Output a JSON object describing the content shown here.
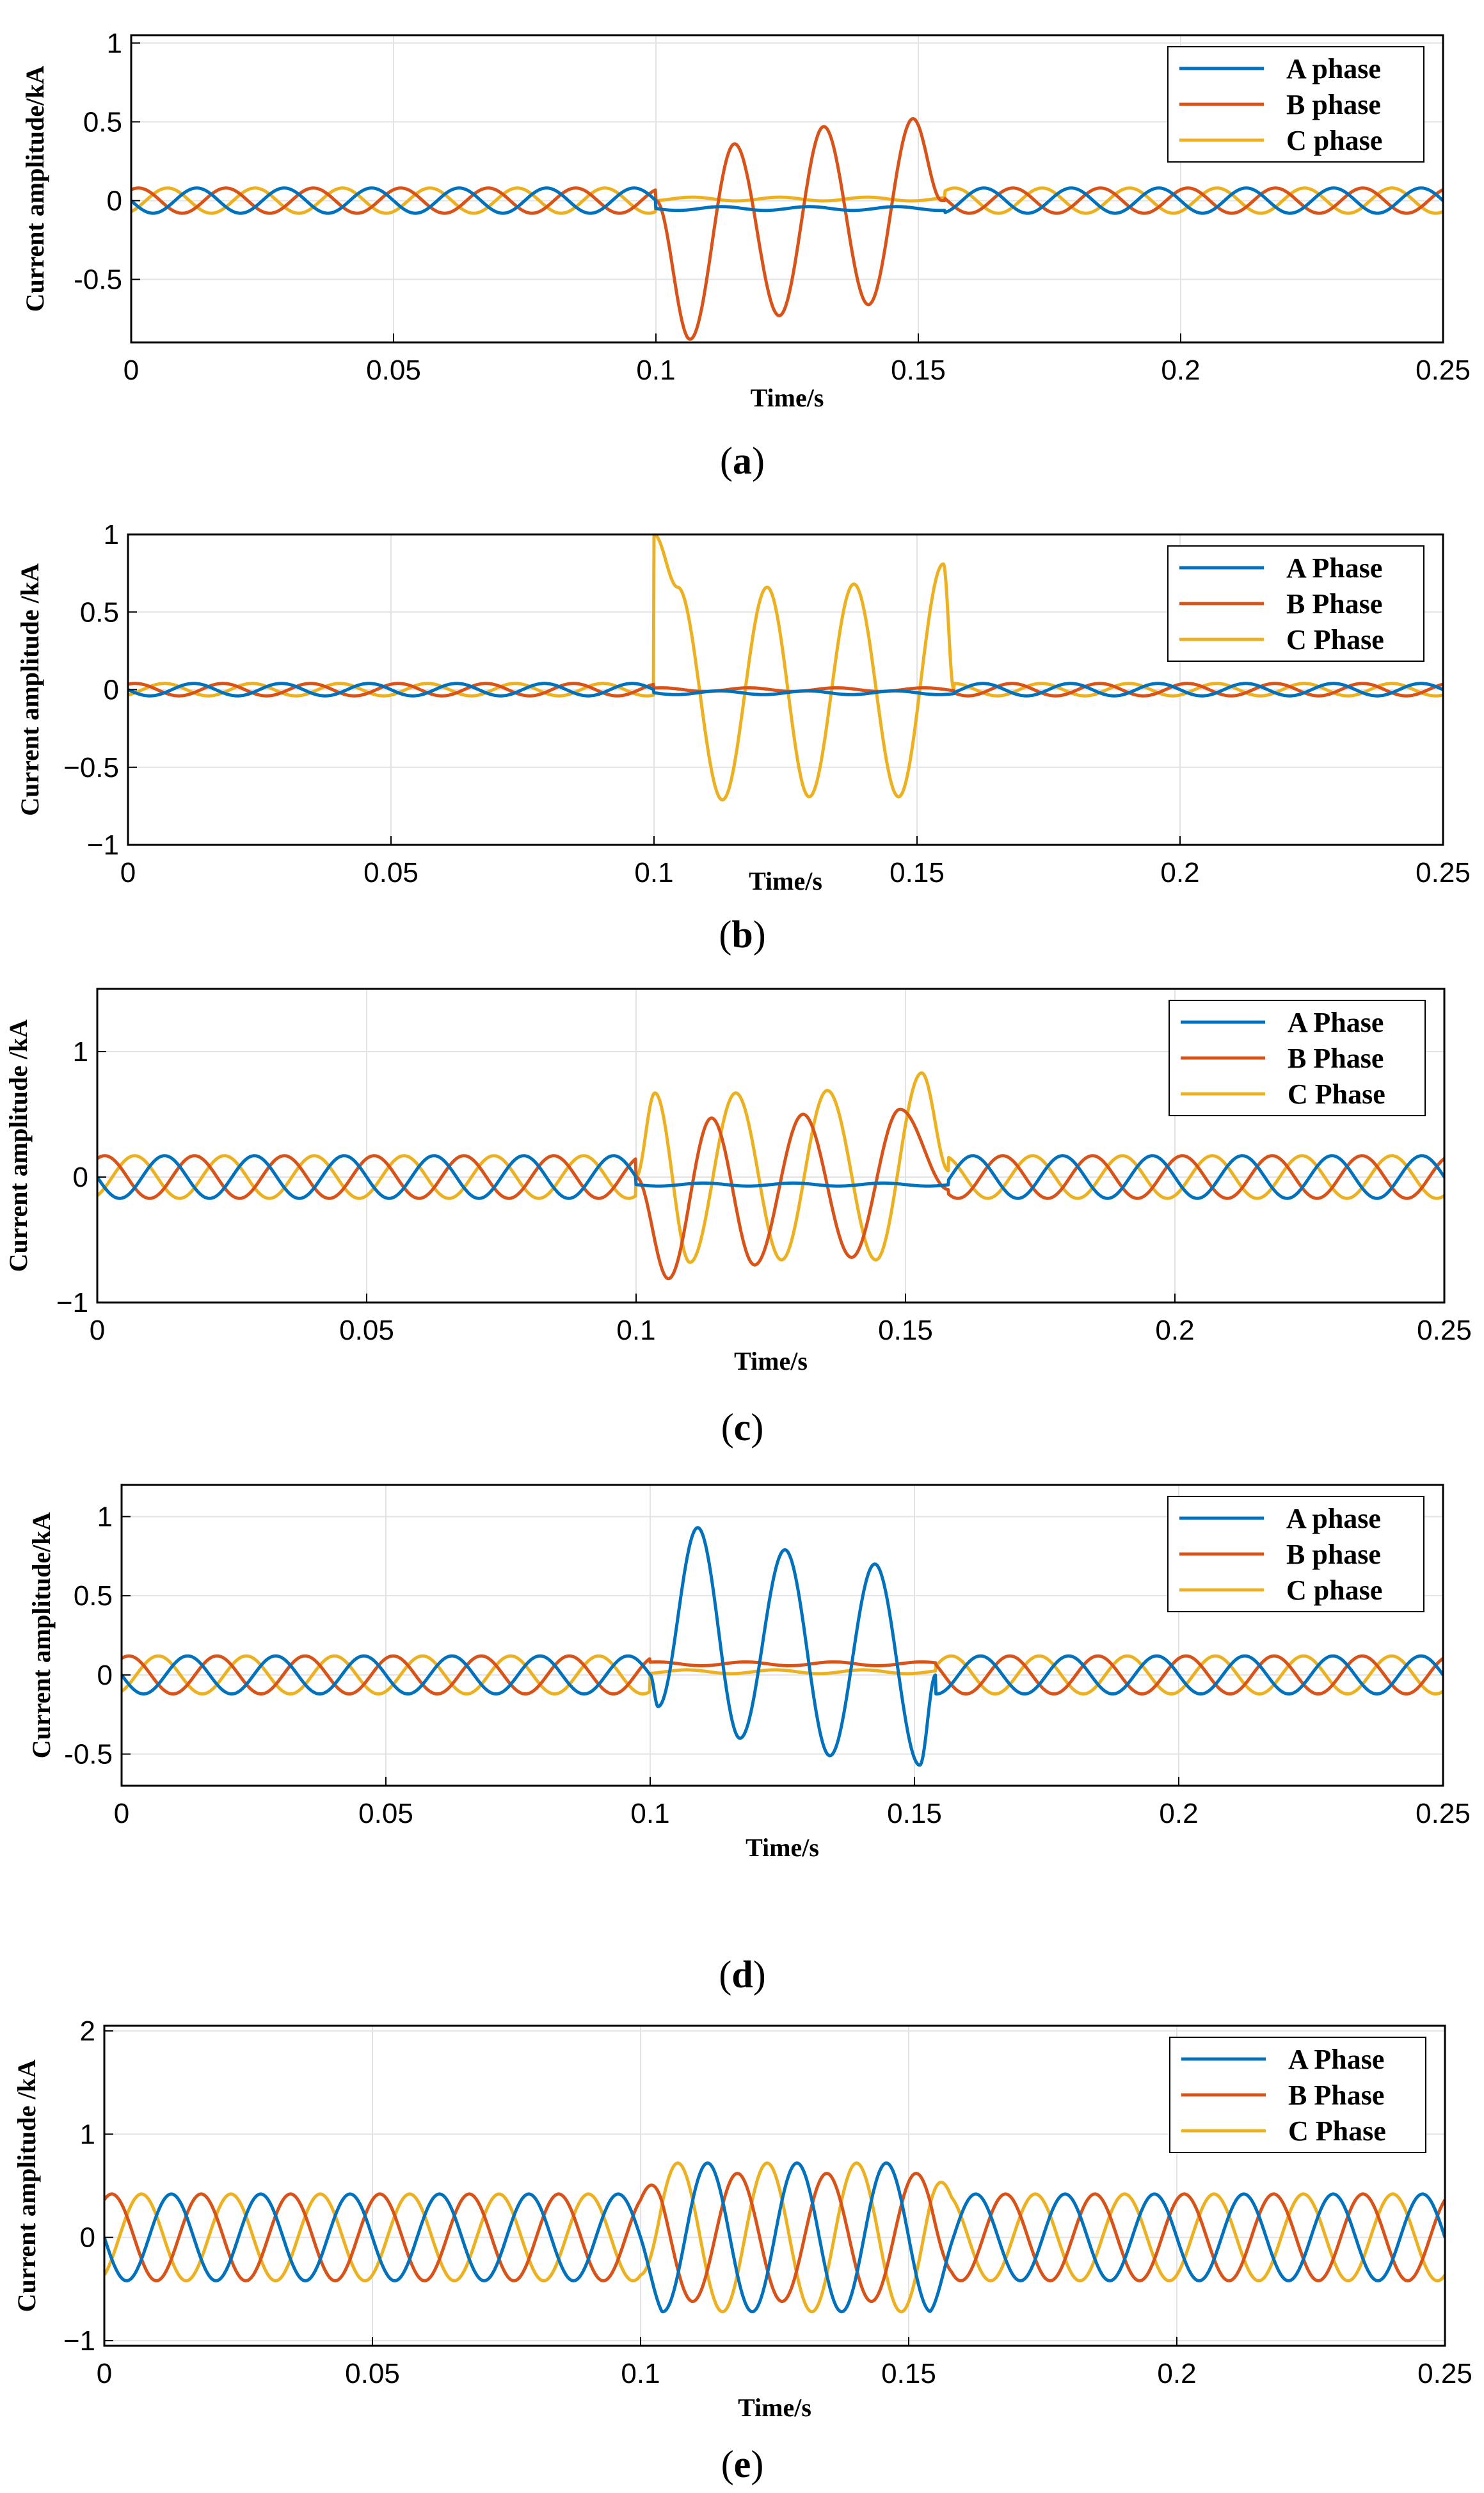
{
  "colors": {
    "a_phase": "#0072BD",
    "b_phase": "#D95319",
    "c_phase": "#EDB120",
    "grid": "#e3e3e3",
    "axis": "#000000"
  },
  "chart_data": [
    {
      "type": "line",
      "caption_open": "(",
      "caption_label": "a",
      "caption_close": ")",
      "xlabel": "Time/s",
      "ylabel": "Current amplitude/kA",
      "xlim": [
        0,
        0.25
      ],
      "ylim": [
        -0.9,
        1.05
      ],
      "xticks": [
        0,
        0.05,
        0.1,
        0.15,
        0.2,
        0.25
      ],
      "xtick_labels": [
        "0",
        "0.05",
        "0.1",
        "0.15",
        "0.2",
        "0.25"
      ],
      "yticks": [
        -0.5,
        0,
        0.5,
        1
      ],
      "ytick_labels": [
        "-0.5",
        "0",
        "0.5",
        "1"
      ],
      "legend_position": "top-right",
      "frequency_hz": 60,
      "fault_interval": [
        0.1,
        0.155
      ],
      "series": [
        {
          "name": "A phase",
          "normal_amplitude": 0.08,
          "phase_deg": 180,
          "fault": {
            "peaks": [
              {
                "t": 0.1,
                "v": 0.0
              },
              {
                "t": 0.155,
                "v": -0.02
              }
            ],
            "mode": "flat",
            "level": -0.05
          }
        },
        {
          "name": "B phase",
          "normal_amplitude": 0.08,
          "phase_deg": 60,
          "fault": {
            "mode": "peaks",
            "peaks": [
              {
                "t": 0.1,
                "v": 0.0
              },
              {
                "t": 0.1065,
                "v": -0.88
              },
              {
                "t": 0.115,
                "v": 0.36
              },
              {
                "t": 0.1235,
                "v": -0.73
              },
              {
                "t": 0.132,
                "v": 0.47
              },
              {
                "t": 0.1405,
                "v": -0.66
              },
              {
                "t": 0.149,
                "v": 0.52
              },
              {
                "t": 0.1545,
                "v": 0.0
              }
            ]
          }
        },
        {
          "name": "C phase",
          "normal_amplitude": 0.08,
          "phase_deg": -60,
          "fault": {
            "mode": "flat",
            "level": 0.01
          }
        }
      ]
    },
    {
      "type": "line",
      "caption_open": "(",
      "caption_label": "b",
      "caption_close": ")",
      "xlabel": "Time/s",
      "ylabel": "Current amplitude /kA",
      "xlim": [
        0,
        0.25
      ],
      "ylim": [
        -1,
        1
      ],
      "xticks": [
        0,
        0.05,
        0.1,
        0.15,
        0.2,
        0.25
      ],
      "xtick_labels": [
        "0",
        "0.05",
        "0.1",
        "0.15",
        "0.2",
        "0.25"
      ],
      "yticks": [
        -1,
        -0.5,
        0,
        0.5,
        1
      ],
      "ytick_labels": [
        "−1",
        "−0.5",
        "0",
        "0.5",
        "1"
      ],
      "legend_position": "top-right",
      "frequency_hz": 60,
      "fault_interval": [
        0.1,
        0.157
      ],
      "series": [
        {
          "name": "A Phase",
          "normal_amplitude": 0.04,
          "phase_deg": 180,
          "fault": {
            "mode": "flat",
            "level": -0.02
          }
        },
        {
          "name": "B Phase",
          "normal_amplitude": 0.04,
          "phase_deg": 60,
          "fault": {
            "mode": "flat",
            "level": 0.0
          }
        },
        {
          "name": "C Phase",
          "normal_amplitude": 0.04,
          "phase_deg": -60,
          "fault": {
            "mode": "peaks",
            "peaks": [
              {
                "t": 0.1,
                "v": 0.0
              },
              {
                "t": 0.1,
                "v": 1.0
              },
              {
                "t": 0.1045,
                "v": 0.66
              },
              {
                "t": 0.113,
                "v": -0.71
              },
              {
                "t": 0.1215,
                "v": 0.66
              },
              {
                "t": 0.1295,
                "v": -0.69
              },
              {
                "t": 0.138,
                "v": 0.68
              },
              {
                "t": 0.1465,
                "v": -0.69
              },
              {
                "t": 0.155,
                "v": 0.81
              },
              {
                "t": 0.157,
                "v": 0.0
              }
            ]
          }
        }
      ]
    },
    {
      "type": "line",
      "caption_open": "(",
      "caption_label": "c",
      "caption_close": ")",
      "xlabel": "Time/s",
      "ylabel": "Current amplitude /kA",
      "xlim": [
        0,
        0.25
      ],
      "ylim": [
        -1,
        1.5
      ],
      "xticks": [
        0,
        0.05,
        0.1,
        0.15,
        0.2,
        0.25
      ],
      "xtick_labels": [
        "0",
        "0.05",
        "0.1",
        "0.15",
        "0.2",
        "0.25"
      ],
      "yticks": [
        -1,
        0,
        1
      ],
      "ytick_labels": [
        "−1",
        "0",
        "1"
      ],
      "legend_position": "top-right",
      "frequency_hz": 60,
      "fault_interval": [
        0.1,
        0.158
      ],
      "series": [
        {
          "name": "A Phase",
          "normal_amplitude": 0.17,
          "phase_deg": 180,
          "fault": {
            "mode": "flat",
            "level": -0.06
          }
        },
        {
          "name": "B Phase",
          "normal_amplitude": 0.17,
          "phase_deg": 60,
          "fault": {
            "mode": "peaks",
            "peaks": [
              {
                "t": 0.1,
                "v": 0.0
              },
              {
                "t": 0.106,
                "v": -0.81
              },
              {
                "t": 0.114,
                "v": 0.47
              },
              {
                "t": 0.122,
                "v": -0.7
              },
              {
                "t": 0.131,
                "v": 0.5
              },
              {
                "t": 0.14,
                "v": -0.64
              },
              {
                "t": 0.149,
                "v": 0.54
              },
              {
                "t": 0.158,
                "v": -0.1
              }
            ]
          }
        },
        {
          "name": "C Phase",
          "normal_amplitude": 0.17,
          "phase_deg": -60,
          "fault": {
            "mode": "peaks",
            "peaks": [
              {
                "t": 0.1,
                "v": 0.0
              },
              {
                "t": 0.1035,
                "v": 0.67
              },
              {
                "t": 0.11,
                "v": -0.68
              },
              {
                "t": 0.1185,
                "v": 0.67
              },
              {
                "t": 0.127,
                "v": -0.66
              },
              {
                "t": 0.1355,
                "v": 0.69
              },
              {
                "t": 0.1445,
                "v": -0.66
              },
              {
                "t": 0.153,
                "v": 0.83
              },
              {
                "t": 0.158,
                "v": 0.05
              }
            ]
          }
        }
      ]
    },
    {
      "type": "line",
      "caption_open": "(",
      "caption_label": "d",
      "caption_close": ")",
      "xlabel": "Time/s",
      "ylabel": "Current amplitude/kA",
      "xlim": [
        0,
        0.25
      ],
      "ylim": [
        -0.7,
        1.2
      ],
      "xticks": [
        0,
        0.05,
        0.1,
        0.15,
        0.2,
        0.25
      ],
      "xtick_labels": [
        "0",
        "0.05",
        "0.1",
        "0.15",
        "0.2",
        "0.25"
      ],
      "yticks": [
        -0.5,
        0,
        0.5,
        1
      ],
      "ytick_labels": [
        "-0.5",
        "0",
        "0.5",
        "1"
      ],
      "legend_position": "top-right",
      "frequency_hz": 60,
      "fault_interval": [
        0.1,
        0.154
      ],
      "series": [
        {
          "name": "A phase",
          "normal_amplitude": 0.12,
          "phase_deg": 180,
          "fault": {
            "mode": "peaks",
            "peaks": [
              {
                "t": 0.1,
                "v": 0.0
              },
              {
                "t": 0.1015,
                "v": -0.2
              },
              {
                "t": 0.109,
                "v": 0.93
              },
              {
                "t": 0.117,
                "v": -0.4
              },
              {
                "t": 0.1255,
                "v": 0.79
              },
              {
                "t": 0.134,
                "v": -0.51
              },
              {
                "t": 0.1425,
                "v": 0.7
              },
              {
                "t": 0.151,
                "v": -0.57
              },
              {
                "t": 0.154,
                "v": 0.0
              }
            ]
          }
        },
        {
          "name": "B phase",
          "normal_amplitude": 0.12,
          "phase_deg": 60,
          "fault": {
            "mode": "flat",
            "level": 0.07
          }
        },
        {
          "name": "C phase",
          "normal_amplitude": 0.12,
          "phase_deg": -60,
          "fault": {
            "mode": "flat",
            "level": 0.02
          }
        }
      ]
    },
    {
      "type": "line",
      "caption_open": "(",
      "caption_label": "e",
      "caption_close": ")",
      "xlabel": "Time/s",
      "ylabel": "Current amplitude /kA",
      "xlim": [
        0,
        0.25
      ],
      "ylim": [
        -1.05,
        2.05
      ],
      "xticks": [
        0,
        0.05,
        0.1,
        0.15,
        0.2,
        0.25
      ],
      "xtick_labels": [
        "0",
        "0.05",
        "0.1",
        "0.15",
        "0.2",
        "0.25"
      ],
      "yticks": [
        -1,
        0,
        1,
        2
      ],
      "ytick_labels": [
        "−1",
        "0",
        "1",
        "2"
      ],
      "legend_position": "top-right",
      "frequency_hz": 60,
      "fault_interval": [
        0.1,
        0.158
      ],
      "series": [
        {
          "name": "A Phase",
          "normal_amplitude": 0.42,
          "phase_deg": 180,
          "fault": {
            "mode": "scaled",
            "amplitude": 0.72
          }
        },
        {
          "name": "B Phase",
          "normal_amplitude": 0.42,
          "phase_deg": 60,
          "fault": {
            "mode": "scaled",
            "amplitude": 0.62
          }
        },
        {
          "name": "C Phase",
          "normal_amplitude": 0.42,
          "phase_deg": -60,
          "fault": {
            "mode": "scaled",
            "amplitude": 0.72
          }
        }
      ]
    }
  ]
}
